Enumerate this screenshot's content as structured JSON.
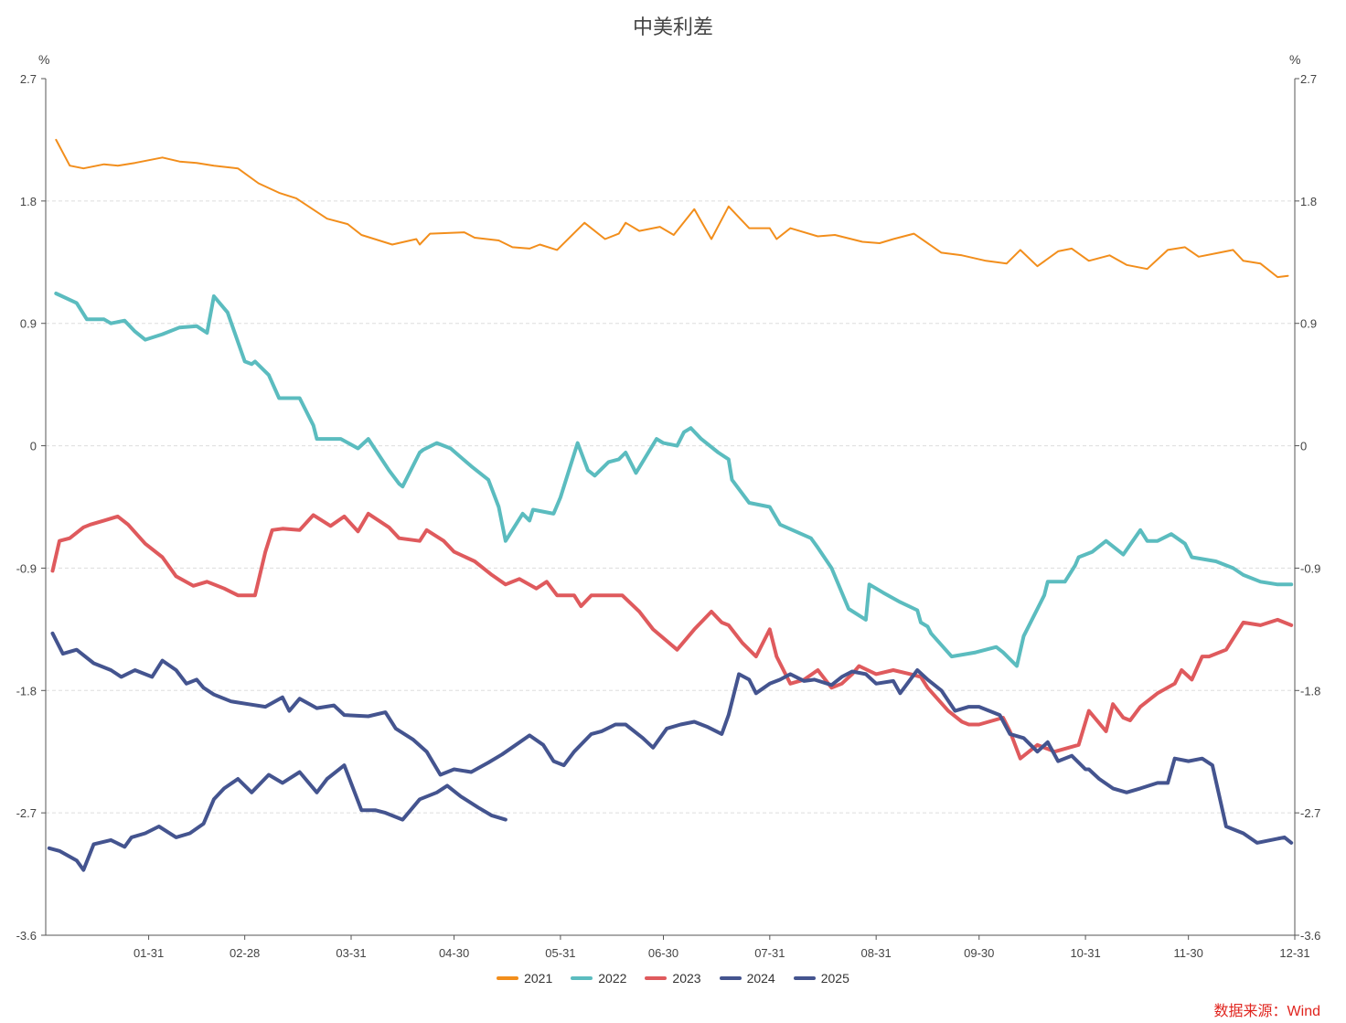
{
  "title": "中美利差",
  "source_note": "数据来源：Wind",
  "chart_data": {
    "type": "line",
    "title": "中美利差",
    "left_unit": "%",
    "right_unit": "%",
    "ylim": [
      -3.6,
      2.7
    ],
    "yticks": [
      2.7,
      1.8,
      0.9,
      0,
      -0.9,
      -1.8,
      -2.7,
      -3.6
    ],
    "ytick_labels": [
      "2.7",
      "1.8",
      "0.9",
      "0",
      "-0.9",
      "-1.8",
      "-2.7",
      "-3.6"
    ],
    "x_domain": [
      1,
      365
    ],
    "xticks": [
      31,
      59,
      90,
      120,
      151,
      181,
      212,
      243,
      273,
      304,
      334,
      365
    ],
    "xtick_labels": [
      "01-31",
      "02-28",
      "03-31",
      "04-30",
      "05-31",
      "06-30",
      "07-31",
      "08-31",
      "09-30",
      "10-31",
      "11-30",
      "12-31"
    ],
    "grid": true,
    "legend_position": "bottom",
    "series": [
      {
        "name": "2021",
        "color": "#f28e1c",
        "width": 2,
        "x": [
          4,
          8,
          12,
          18,
          22,
          27,
          35,
          40,
          45,
          50,
          57,
          63,
          69,
          74,
          83,
          89,
          93,
          102,
          109,
          110,
          113,
          123,
          126,
          133,
          137,
          142,
          145,
          150,
          158,
          164,
          168,
          170,
          174,
          180,
          184,
          190,
          195,
          200,
          206,
          212,
          214,
          218,
          226,
          231,
          239,
          244,
          248,
          254,
          262,
          268,
          275,
          281,
          285,
          290,
          296,
          300,
          305,
          311,
          316,
          322,
          328,
          333,
          337,
          343,
          347,
          350,
          355,
          360,
          363
        ],
        "y": [
          2.25,
          2.06,
          2.04,
          2.07,
          2.06,
          2.08,
          2.12,
          2.09,
          2.08,
          2.06,
          2.04,
          1.93,
          1.86,
          1.82,
          1.67,
          1.63,
          1.55,
          1.48,
          1.52,
          1.48,
          1.56,
          1.57,
          1.53,
          1.51,
          1.46,
          1.45,
          1.48,
          1.44,
          1.64,
          1.52,
          1.56,
          1.64,
          1.58,
          1.61,
          1.55,
          1.74,
          1.52,
          1.76,
          1.6,
          1.6,
          1.52,
          1.6,
          1.54,
          1.55,
          1.5,
          1.49,
          1.52,
          1.56,
          1.42,
          1.4,
          1.36,
          1.34,
          1.44,
          1.32,
          1.43,
          1.45,
          1.36,
          1.4,
          1.33,
          1.3,
          1.44,
          1.46,
          1.39,
          1.42,
          1.44,
          1.36,
          1.34,
          1.24,
          1.25
        ]
      },
      {
        "name": "2022",
        "color": "#5bbcbf",
        "width": 4,
        "x": [
          4,
          10,
          13,
          18,
          20,
          24,
          27,
          30,
          35,
          40,
          45,
          48,
          50,
          54,
          59,
          61,
          62,
          66,
          69,
          75,
          79,
          80,
          83,
          87,
          92,
          95,
          101,
          104,
          105,
          110,
          111,
          115,
          119,
          125,
          130,
          133,
          135,
          140,
          142,
          143,
          149,
          151,
          156,
          159,
          161,
          165,
          168,
          170,
          173,
          179,
          181,
          185,
          187,
          189,
          192,
          197,
          200,
          201,
          206,
          212,
          215,
          224,
          226,
          230,
          235,
          240,
          241,
          245,
          250,
          255,
          256,
          258,
          259,
          265,
          272,
          278,
          280,
          284,
          286,
          292,
          293,
          298,
          301,
          302,
          306,
          310,
          315,
          320,
          322,
          325,
          329,
          333,
          335,
          342,
          347,
          350,
          355,
          360,
          364
        ],
        "y": [
          1.12,
          1.05,
          0.93,
          0.93,
          0.9,
          0.92,
          0.84,
          0.78,
          0.82,
          0.87,
          0.88,
          0.83,
          1.1,
          0.98,
          0.62,
          0.6,
          0.62,
          0.52,
          0.35,
          0.35,
          0.15,
          0.05,
          0.05,
          0.05,
          -0.02,
          0.05,
          -0.18,
          -0.28,
          -0.3,
          -0.05,
          -0.03,
          0.02,
          -0.02,
          -0.15,
          -0.25,
          -0.45,
          -0.7,
          -0.5,
          -0.55,
          -0.47,
          -0.5,
          -0.38,
          0.02,
          -0.18,
          -0.22,
          -0.12,
          -0.1,
          -0.05,
          -0.2,
          0.05,
          0.02,
          0.0,
          0.1,
          0.13,
          0.05,
          -0.05,
          -0.1,
          -0.25,
          -0.42,
          -0.45,
          -0.58,
          -0.68,
          -0.75,
          -0.9,
          -1.2,
          -1.28,
          -1.02,
          -1.08,
          -1.15,
          -1.21,
          -1.3,
          -1.33,
          -1.38,
          -1.55,
          -1.52,
          -1.48,
          -1.52,
          -1.62,
          -1.4,
          -1.1,
          -1.0,
          -1.0,
          -0.88,
          -0.82,
          -0.78,
          -0.7,
          -0.8,
          -0.62,
          -0.7,
          -0.7,
          -0.65,
          -0.72,
          -0.82,
          -0.85,
          -0.9,
          -0.95,
          -1.0,
          -1.02,
          -1.02
        ]
      },
      {
        "name": "2023",
        "color": "#df5a5d",
        "width": 4,
        "x": [
          3,
          5,
          8,
          12,
          14,
          18,
          22,
          25,
          30,
          35,
          39,
          44,
          48,
          53,
          57,
          62,
          65,
          67,
          70,
          75,
          79,
          84,
          88,
          92,
          95,
          101,
          104,
          110,
          112,
          117,
          120,
          126,
          131,
          135,
          139,
          144,
          147,
          150,
          155,
          157,
          160,
          165,
          169,
          174,
          178,
          185,
          190,
          195,
          198,
          200,
          204,
          208,
          212,
          214,
          218,
          222,
          226,
          230,
          233,
          236,
          238,
          243,
          248,
          253,
          256,
          258,
          264,
          268,
          270,
          273,
          280,
          282,
          285,
          290,
          295,
          302,
          305,
          310,
          312,
          315,
          317,
          320,
          325,
          330,
          332,
          335,
          338,
          340,
          345,
          350,
          355,
          360,
          364
        ],
        "y": [
          -0.92,
          -0.7,
          -0.68,
          -0.6,
          -0.58,
          -0.55,
          -0.52,
          -0.58,
          -0.72,
          -0.82,
          -0.96,
          -1.03,
          -1.0,
          -1.05,
          -1.1,
          -1.1,
          -0.78,
          -0.62,
          -0.61,
          -0.62,
          -0.51,
          -0.59,
          -0.52,
          -0.63,
          -0.5,
          -0.6,
          -0.68,
          -0.7,
          -0.62,
          -0.7,
          -0.78,
          -0.85,
          -0.95,
          -1.02,
          -0.98,
          -1.05,
          -1.0,
          -1.1,
          -1.1,
          -1.18,
          -1.1,
          -1.1,
          -1.1,
          -1.22,
          -1.35,
          -1.5,
          -1.35,
          -1.22,
          -1.3,
          -1.32,
          -1.45,
          -1.55,
          -1.35,
          -1.55,
          -1.75,
          -1.72,
          -1.65,
          -1.78,
          -1.75,
          -1.68,
          -1.62,
          -1.68,
          -1.65,
          -1.68,
          -1.7,
          -1.78,
          -1.95,
          -2.03,
          -2.05,
          -2.05,
          -2.0,
          -2.1,
          -2.3,
          -2.2,
          -2.25,
          -2.2,
          -1.95,
          -2.1,
          -1.9,
          -2.0,
          -2.02,
          -1.92,
          -1.82,
          -1.75,
          -1.65,
          -1.72,
          -1.55,
          -1.55,
          -1.5,
          -1.3,
          -1.32,
          -1.28,
          -1.32
        ]
      },
      {
        "name": "2024",
        "color": "#44548f",
        "width": 4,
        "x": [
          3,
          6,
          10,
          15,
          20,
          23,
          27,
          32,
          35,
          39,
          42,
          45,
          47,
          50,
          55,
          60,
          65,
          70,
          72,
          75,
          80,
          85,
          88,
          95,
          100,
          103,
          108,
          112,
          116,
          120,
          125,
          130,
          134,
          138,
          142,
          146,
          149,
          152,
          155,
          160,
          163,
          167,
          170,
          175,
          178,
          182,
          186,
          190,
          194,
          198,
          200,
          203,
          206,
          208,
          212,
          215,
          218,
          222,
          225,
          230,
          233,
          236,
          240,
          243,
          248,
          250,
          255,
          258,
          262,
          266,
          270,
          273,
          276,
          279,
          282,
          286,
          290,
          293,
          296,
          300,
          304,
          305,
          308,
          312,
          316,
          320,
          325,
          328,
          330,
          334,
          338,
          341,
          345,
          350,
          354,
          358,
          362,
          364
        ],
        "y": [
          -1.38,
          -1.53,
          -1.5,
          -1.6,
          -1.65,
          -1.7,
          -1.65,
          -1.7,
          -1.58,
          -1.65,
          -1.75,
          -1.72,
          -1.78,
          -1.83,
          -1.88,
          -1.9,
          -1.92,
          -1.85,
          -1.95,
          -1.86,
          -1.93,
          -1.91,
          -1.98,
          -1.99,
          -1.96,
          -2.08,
          -2.16,
          -2.25,
          -2.42,
          -2.38,
          -2.4,
          -2.33,
          -2.27,
          -2.2,
          -2.13,
          -2.2,
          -2.32,
          -2.35,
          -2.25,
          -2.12,
          -2.1,
          -2.05,
          -2.05,
          -2.15,
          -2.22,
          -2.08,
          -2.05,
          -2.03,
          -2.07,
          -2.12,
          -1.98,
          -1.68,
          -1.72,
          -1.82,
          -1.75,
          -1.72,
          -1.68,
          -1.73,
          -1.72,
          -1.76,
          -1.7,
          -1.66,
          -1.68,
          -1.75,
          -1.73,
          -1.82,
          -1.65,
          -1.72,
          -1.8,
          -1.95,
          -1.92,
          -1.92,
          -1.95,
          -1.98,
          -2.12,
          -2.15,
          -2.25,
          -2.18,
          -2.32,
          -2.28,
          -2.38,
          -2.38,
          -2.45,
          -2.52,
          -2.55,
          -2.52,
          -2.48,
          -2.48,
          -2.3,
          -2.32,
          -2.3,
          -2.35,
          -2.8,
          -2.85,
          -2.92,
          -2.9,
          -2.88,
          -2.92
        ]
      },
      {
        "name": "2025",
        "color": "#44548f",
        "width": 4,
        "x": [
          2,
          5,
          10,
          12,
          15,
          20,
          24,
          26,
          30,
          34,
          39,
          43,
          47,
          50,
          53,
          57,
          61,
          66,
          70,
          75,
          80,
          83,
          88,
          93,
          97,
          100,
          105,
          110,
          115,
          118,
          122,
          127,
          131,
          135
        ],
        "y": [
          -2.96,
          -2.98,
          -3.05,
          -3.12,
          -2.93,
          -2.9,
          -2.95,
          -2.88,
          -2.85,
          -2.8,
          -2.88,
          -2.85,
          -2.78,
          -2.6,
          -2.52,
          -2.45,
          -2.55,
          -2.42,
          -2.48,
          -2.4,
          -2.55,
          -2.45,
          -2.35,
          -2.68,
          -2.68,
          -2.7,
          -2.75,
          -2.6,
          -2.55,
          -2.5,
          -2.58,
          -2.66,
          -2.72,
          -2.75
        ]
      }
    ]
  }
}
